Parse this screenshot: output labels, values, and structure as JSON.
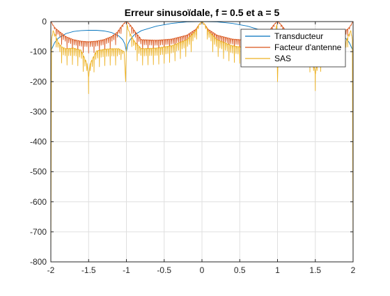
{
  "chart_data": {
    "type": "line",
    "title": "Erreur sinusoïdale, f = 0.5 et a = 5",
    "xlabel": "",
    "ylabel": "",
    "xlim": [
      -2,
      2
    ],
    "ylim": [
      -800,
      0
    ],
    "xticks": [
      -2,
      -1.5,
      -1,
      -0.5,
      0,
      0.5,
      1,
      1.5,
      2
    ],
    "xtick_labels": [
      "-2",
      "-1.5",
      "-1",
      "-0.5",
      "0",
      "0.5",
      "1",
      "1.5",
      "2"
    ],
    "yticks": [
      0,
      -100,
      -200,
      -300,
      -400,
      -500,
      -600,
      -700,
      -800
    ],
    "ytick_labels": [
      "0",
      "-100",
      "-200",
      "-300",
      "-400",
      "-500",
      "-600",
      "-700",
      "-800"
    ],
    "grid": true,
    "legend_position": "top-right",
    "series": [
      {
        "name": "Transducteur",
        "color": "#0072BD",
        "x": [
          -2,
          -1.95,
          -1.9,
          -1.8,
          -1.7,
          -1.6,
          -1.5,
          -1.45,
          -1.4,
          -1.3,
          -1.2,
          -1.1,
          -1.05,
          -1.02,
          -1.0,
          -0.98,
          -0.95,
          -0.9,
          -0.8,
          -0.6,
          -0.4,
          -0.2,
          0,
          0.2,
          0.4,
          0.6,
          0.8,
          0.9,
          0.95,
          0.98,
          1.0,
          1.02,
          1.05,
          1.1,
          1.2,
          1.3,
          1.4,
          1.45,
          1.5,
          1.6,
          1.7,
          1.8,
          1.9,
          1.95,
          2
        ],
        "y": [
          -98,
          -70,
          -55,
          -40,
          -33,
          -30,
          -29,
          -29,
          -29,
          -31,
          -36,
          -48,
          -60,
          -75,
          -100,
          -75,
          -60,
          -45,
          -30,
          -15,
          -6,
          -1,
          0,
          -1,
          -6,
          -15,
          -30,
          -45,
          -60,
          -75,
          -100,
          -75,
          -60,
          -48,
          -36,
          -31,
          -29,
          -29,
          -29,
          -30,
          -33,
          -40,
          -55,
          -70,
          -98
        ]
      },
      {
        "name": "Facteur d'antenne",
        "color": "#D95319",
        "x": [
          -2,
          -1.99,
          -1.97,
          -1.94,
          -1.9,
          -1.85,
          -1.8,
          -1.7,
          -1.6,
          -1.5,
          -1.4,
          -1.3,
          -1.2,
          -1.12,
          -1.08,
          -1.04,
          -1.02,
          -1.0,
          -0.98,
          -0.96,
          -0.92,
          -0.88,
          -0.8,
          -0.6,
          -0.4,
          -0.2,
          -0.08,
          -0.04,
          0,
          0.04,
          0.08,
          0.2,
          0.4,
          0.6,
          0.8,
          0.88,
          0.92,
          0.96,
          0.98,
          1.0,
          1.02,
          1.04,
          1.08,
          1.12,
          1.2,
          1.3,
          1.4,
          1.5,
          1.6,
          1.7,
          1.8,
          1.85,
          1.9,
          1.94,
          1.97,
          1.99,
          2
        ],
        "y": [
          0,
          -3,
          -12,
          -22,
          -30,
          -40,
          -50,
          -60,
          -65,
          -67,
          -65,
          -60,
          -50,
          -35,
          -20,
          -8,
          -3,
          0,
          -3,
          -8,
          -20,
          -35,
          -60,
          -62,
          -58,
          -45,
          -25,
          -10,
          0,
          -10,
          -25,
          -45,
          -58,
          -62,
          -60,
          -35,
          -20,
          -8,
          -3,
          0,
          -3,
          -8,
          -20,
          -35,
          -50,
          -60,
          -65,
          -67,
          -65,
          -60,
          -50,
          -40,
          -30,
          -22,
          -12,
          -3,
          0
        ],
        "note": "dense oscillating comb of notches down to about -100 between lobes"
      },
      {
        "name": "SAS",
        "color": "#EDB120",
        "x": [
          -2,
          -1.99,
          -1.97,
          -1.94,
          -1.9,
          -1.85,
          -1.8,
          -1.7,
          -1.6,
          -1.52,
          -1.5,
          -1.48,
          -1.4,
          -1.3,
          -1.2,
          -1.1,
          -1.03,
          -1.01,
          -1.0,
          -0.99,
          -0.97,
          -0.92,
          -0.88,
          -0.8,
          -0.6,
          -0.4,
          -0.2,
          -0.08,
          -0.04,
          0,
          0.04,
          0.08,
          0.2,
          0.4,
          0.6,
          0.8,
          0.88,
          0.92,
          0.97,
          0.99,
          1.0,
          1.01,
          1.03,
          1.1,
          1.2,
          1.3,
          1.4,
          1.48,
          1.5,
          1.52,
          1.6,
          1.7,
          1.8,
          1.85,
          1.9,
          1.94,
          1.97,
          1.99,
          2
        ],
        "y": [
          -800,
          -60,
          -30,
          -45,
          -70,
          -85,
          -90,
          -88,
          -95,
          -140,
          -185,
          -140,
          -98,
          -92,
          -90,
          -90,
          -100,
          -200,
          -80,
          -10,
          -30,
          -55,
          -70,
          -90,
          -88,
          -80,
          -60,
          -30,
          -10,
          0,
          -10,
          -30,
          -60,
          -80,
          -88,
          -90,
          -70,
          -55,
          -30,
          -10,
          -200,
          -100,
          -90,
          -90,
          -90,
          -92,
          -98,
          -140,
          -175,
          -140,
          -95,
          -88,
          -90,
          -85,
          -70,
          -45,
          -30,
          -60,
          -800
        ],
        "note": "dense oscillating comb of notches down to about -140 between lobes"
      }
    ]
  }
}
